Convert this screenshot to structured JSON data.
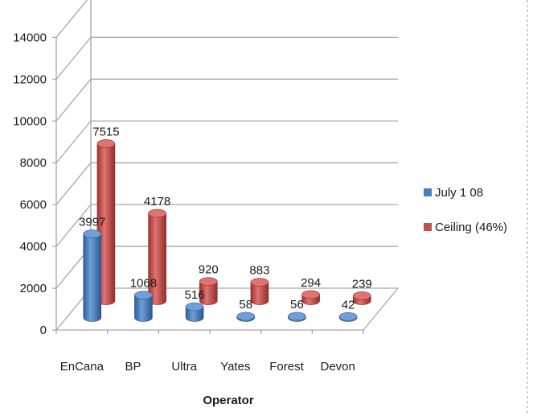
{
  "chart_data": {
    "type": "bar",
    "style": "3d-cylinder",
    "title": "",
    "xlabel": "Operator",
    "ylabel": "",
    "ylim": [
      0,
      14000
    ],
    "yticks": [
      0,
      2000,
      4000,
      6000,
      8000,
      10000,
      12000,
      14000
    ],
    "grid": true,
    "legend_position": "right",
    "categories": [
      "EnCana",
      "BP",
      "Ultra",
      "Yates",
      "Forest",
      "Devon"
    ],
    "series": [
      {
        "name": "July 1 08",
        "values": [
          3997,
          1068,
          516,
          58,
          56,
          42
        ],
        "color": "#4a7ebb"
      },
      {
        "name": "Ceiling (46%)",
        "values": [
          7515,
          4178,
          920,
          883,
          294,
          239
        ],
        "color": "#c0504d"
      }
    ]
  }
}
